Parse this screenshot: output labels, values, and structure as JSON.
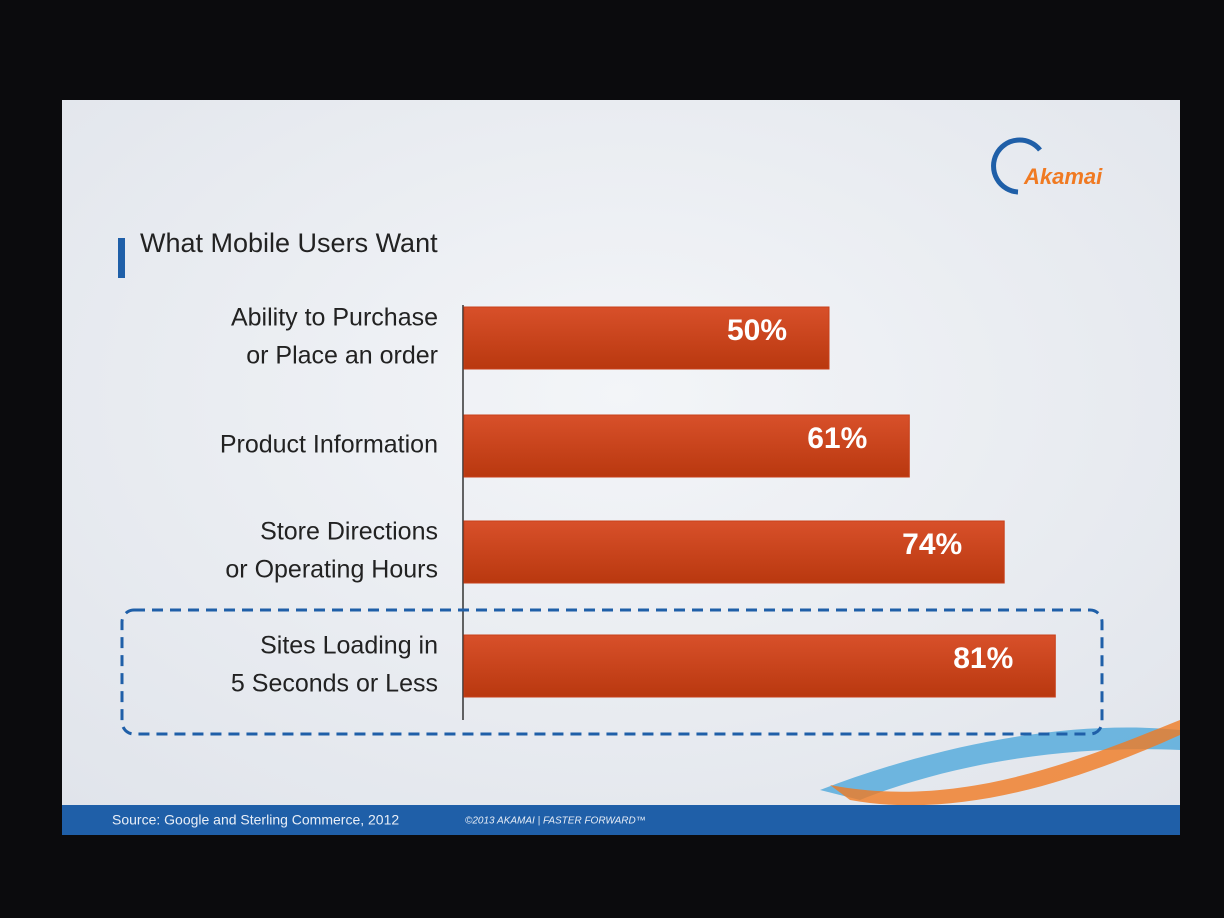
{
  "brand": "Akamai",
  "chart_data": {
    "type": "bar",
    "orientation": "horizontal",
    "title": "What Mobile Users Want",
    "categories": [
      [
        "Ability to Purchase",
        "or Place an order"
      ],
      [
        "Product Information"
      ],
      [
        "Store Directions",
        "or Operating Hours"
      ],
      [
        "Sites Loading in",
        "5 Seconds or Less"
      ]
    ],
    "values": [
      50,
      61,
      74,
      81
    ],
    "value_labels": [
      "50%",
      "61%",
      "74%",
      "81%"
    ],
    "color": "#c8401a"
  },
  "footer": {
    "source": "Source: Google and Sterling Commerce, 2012",
    "copyright": "©2013 AKAMAI | FASTER FORWARD™"
  }
}
